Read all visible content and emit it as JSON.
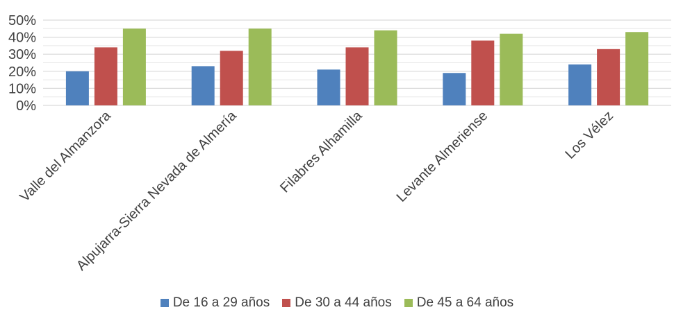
{
  "chart_data": {
    "type": "bar",
    "categories": [
      "Valle del Almanzora",
      "Alpujarra-Sierra Nevada de Almería",
      "Filabres Alhamilla",
      "Levante Almeriense",
      "Los Vélez"
    ],
    "series": [
      {
        "name": "De 16 a 29 años",
        "color": "#4F81BD",
        "values": [
          0.2,
          0.23,
          0.21,
          0.19,
          0.24
        ]
      },
      {
        "name": "De 30 a 44 años",
        "color": "#C0504D",
        "values": [
          0.34,
          0.32,
          0.34,
          0.38,
          0.33
        ]
      },
      {
        "name": "De 45 a 64 años",
        "color": "#9BBB59",
        "values": [
          0.45,
          0.45,
          0.44,
          0.42,
          0.43
        ]
      }
    ],
    "y_ticks": [
      "0%",
      "10%",
      "20%",
      "30%",
      "40%",
      "50%"
    ],
    "ylim": [
      0,
      0.5
    ],
    "grid": true,
    "legend_position": "bottom"
  }
}
